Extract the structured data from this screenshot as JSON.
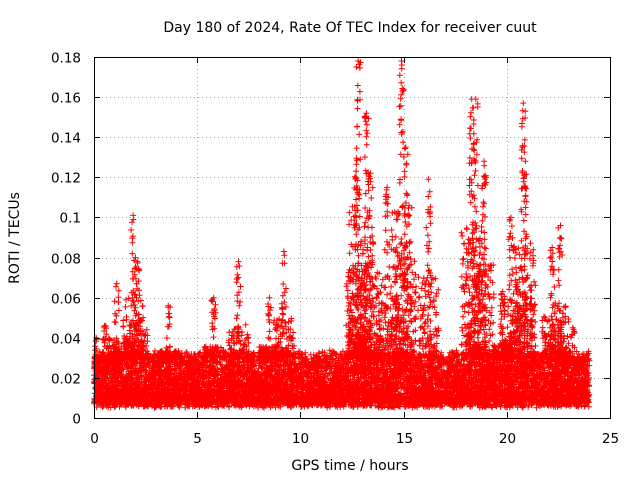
{
  "chart_data": {
    "type": "scatter",
    "title": "Day 180 of 2024, Rate Of TEC Index for receiver cuut",
    "xlabel": "GPS time / hours",
    "ylabel": "ROTI / TECUs",
    "xlim": [
      0,
      25
    ],
    "ylim": [
      0,
      0.18
    ],
    "xticks": [
      "0",
      "5",
      "10",
      "15",
      "20",
      "25"
    ],
    "yticks": [
      "0",
      "0.02",
      "0.04",
      "0.06",
      "0.08",
      "0.1",
      "0.12",
      "0.14",
      "0.16",
      "0.18"
    ],
    "grid": true,
    "marker": "+",
    "color": "#ff0000",
    "series": [
      {
        "x_range": [
          0,
          24
        ],
        "baseline_range": [
          0.005,
          0.03
        ],
        "spikes": [
          {
            "x": 0.1,
            "y": 0.04
          },
          {
            "x": 0.5,
            "y": 0.046
          },
          {
            "x": 1.1,
            "y": 0.067
          },
          {
            "x": 1.9,
            "y": 0.101
          },
          {
            "x": 2.1,
            "y": 0.078
          },
          {
            "x": 3.6,
            "y": 0.056
          },
          {
            "x": 5.8,
            "y": 0.06
          },
          {
            "x": 7.0,
            "y": 0.078
          },
          {
            "x": 8.5,
            "y": 0.06
          },
          {
            "x": 9.2,
            "y": 0.083
          },
          {
            "x": 12.7,
            "y": 0.123
          },
          {
            "x": 12.8,
            "y": 0.178
          },
          {
            "x": 13.2,
            "y": 0.152
          },
          {
            "x": 13.4,
            "y": 0.122
          },
          {
            "x": 14.2,
            "y": 0.115
          },
          {
            "x": 14.9,
            "y": 0.178
          },
          {
            "x": 15.1,
            "y": 0.135
          },
          {
            "x": 16.2,
            "y": 0.119
          },
          {
            "x": 18.3,
            "y": 0.159
          },
          {
            "x": 18.5,
            "y": 0.159
          },
          {
            "x": 18.9,
            "y": 0.128
          },
          {
            "x": 19.8,
            "y": 0.063
          },
          {
            "x": 20.2,
            "y": 0.1
          },
          {
            "x": 20.8,
            "y": 0.157
          },
          {
            "x": 20.9,
            "y": 0.128
          },
          {
            "x": 22.2,
            "y": 0.085
          },
          {
            "x": 22.6,
            "y": 0.096
          },
          {
            "x": 23.2,
            "y": 0.045
          }
        ]
      }
    ]
  }
}
